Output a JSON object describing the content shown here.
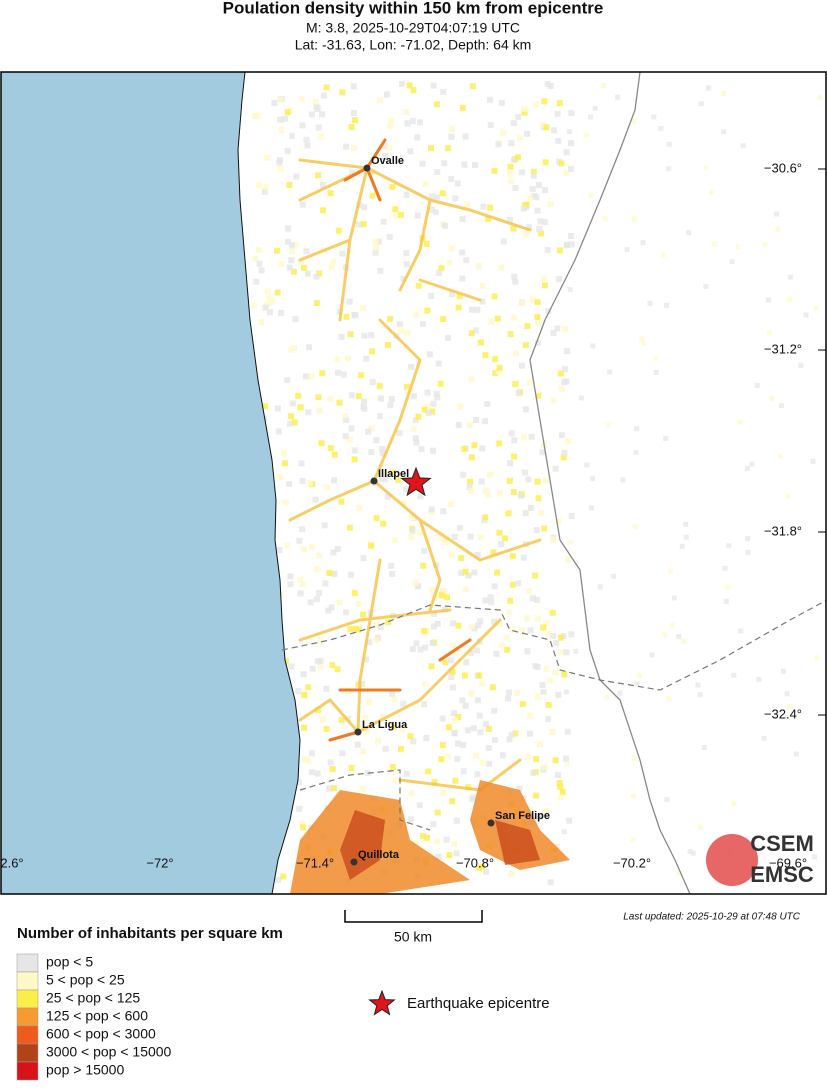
{
  "header": {
    "title": "Poulation density within 150 km from epicentre",
    "line1": "M: 3.8,  2025-10-29T04:07:19 UTC",
    "line2": "Lat: -31.63, Lon: -71.02, Depth: 64 km"
  },
  "map": {
    "cities": [
      {
        "label": "Ovalle"
      },
      {
        "label": "Illapel"
      },
      {
        "label": "La Ligua"
      },
      {
        "label": "San Felipe"
      },
      {
        "label": "Quillota"
      }
    ],
    "lon_labels": [
      "2.6°",
      "−72°",
      "−71.4°",
      "−70.8°",
      "−70.2°",
      "−69.6°"
    ],
    "lat_labels": [
      "−30.6°",
      "−31.2°",
      "−31.8°",
      "−32.4°"
    ],
    "scale_bar": "50 km",
    "last_updated": "Last updated: 2025-10-29 at 07:48 UTC",
    "logo": {
      "top": "CSEM",
      "bottom": "EMSC"
    }
  },
  "legend": {
    "title": "Number of inhabitants per square km",
    "items": [
      {
        "label": "pop < 5",
        "color": "#e6e6e6"
      },
      {
        "label": "5 < pop < 25",
        "color": "#fff9c8"
      },
      {
        "label": "25 < pop < 125",
        "color": "#fbee4a"
      },
      {
        "label": "125 < pop < 600",
        "color": "#f89a32"
      },
      {
        "label": "600 < pop < 3000",
        "color": "#ef5b1c"
      },
      {
        "label": "3000 < pop < 15000",
        "color": "#b04418"
      },
      {
        "label": "pop > 15000",
        "color": "#d5141a"
      }
    ],
    "epicentre_label": "Earthquake epicentre"
  }
}
